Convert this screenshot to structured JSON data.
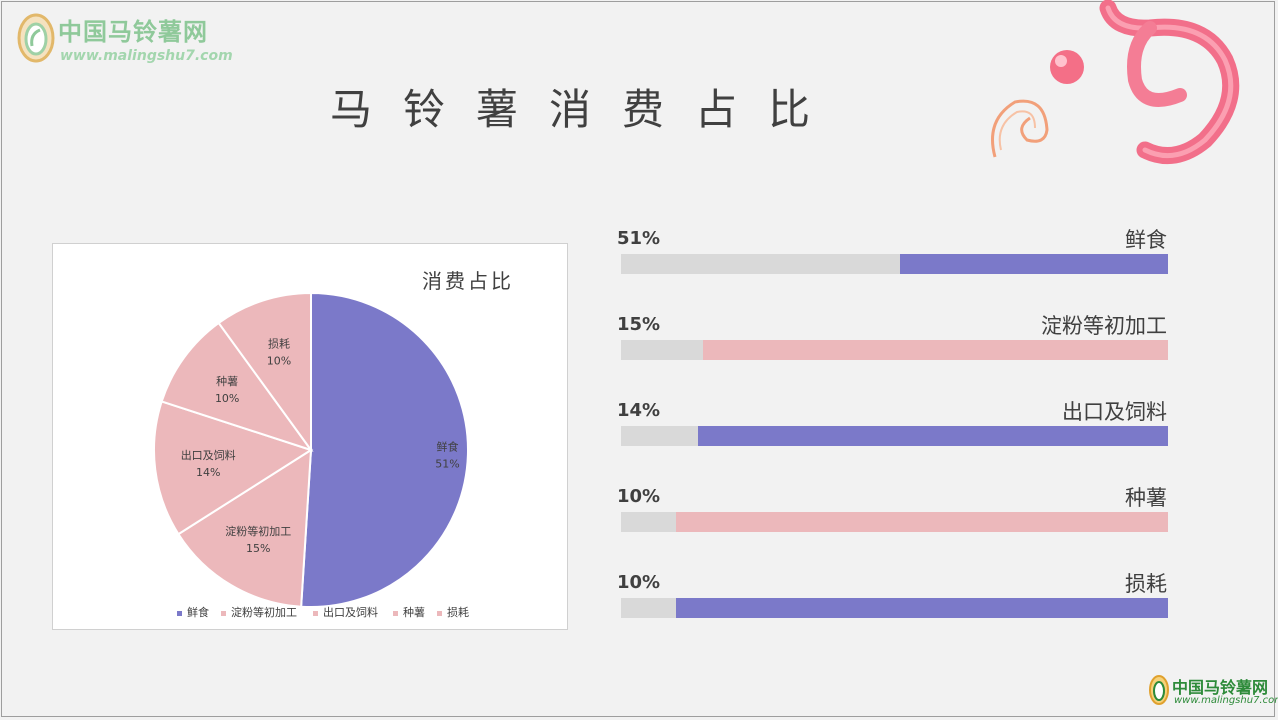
{
  "logo": {
    "brand": "中国马铃薯网",
    "url": "www.malingshu7.com"
  },
  "title": "马铃薯消费占比",
  "colors": {
    "purple": "#7b79c9",
    "pink": "#ecb8bb",
    "track": "#d9d9d9",
    "deco_pink": "#f26f8a"
  },
  "chart_data": {
    "type": "pie",
    "title": "消费占比",
    "legend_position": "bottom",
    "categories": [
      "鲜食",
      "淀粉等初加工",
      "出口及饲料",
      "种薯",
      "损耗"
    ],
    "values": [
      51,
      15,
      14,
      10,
      10
    ],
    "labels": [
      "51%",
      "15%",
      "14%",
      "10%",
      "10%"
    ],
    "slice_colors": [
      "#7b79c9",
      "#ecb8bb",
      "#ecb8bb",
      "#ecb8bb",
      "#ecb8bb"
    ]
  },
  "bars": [
    {
      "label": "鲜食",
      "pct_text": "51%",
      "value": 51,
      "color": "#7b79c9"
    },
    {
      "label": "淀粉等初加工",
      "pct_text": "15%",
      "value": 15,
      "color": "#ecb8bb"
    },
    {
      "label": "出口及饲料",
      "pct_text": "14%",
      "value": 14,
      "color": "#7b79c9"
    },
    {
      "label": "种薯",
      "pct_text": "10%",
      "value": 10,
      "color": "#ecb8bb"
    },
    {
      "label": "损耗",
      "pct_text": "10%",
      "value": 10,
      "color": "#7b79c9"
    }
  ]
}
